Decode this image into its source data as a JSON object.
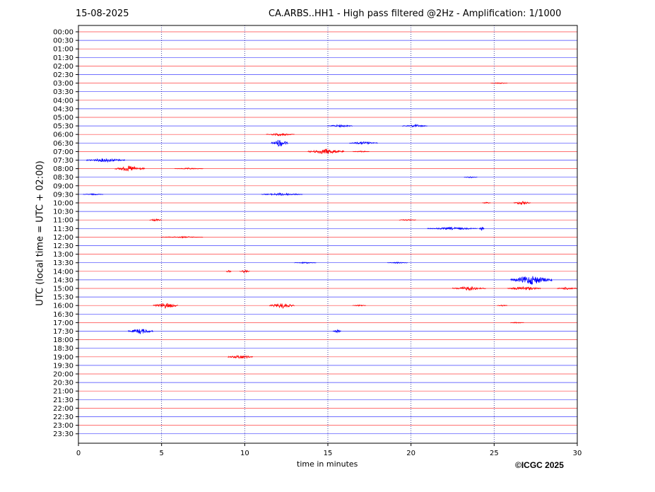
{
  "header": {
    "date": "15-08-2025",
    "station_title": "CA.ARBS..HH1 - High pass filtered @2Hz - Amplification: 1/1000"
  },
  "footer": {
    "copyright": "©ICGC 2025"
  },
  "chart_data": {
    "type": "line",
    "title": "CA.ARBS..HH1 - High pass filtered @2Hz - Amplification: 1/1000",
    "xlabel": "time in minutes",
    "ylabel": "UTC (local time = UTC + 02:00)",
    "xlim": [
      0,
      30
    ],
    "xticks": [
      0,
      5,
      10,
      15,
      20,
      25,
      30
    ],
    "vertical_gridlines": [
      5,
      10,
      15,
      20,
      25
    ],
    "grid": "dotted vertical lines at 5-minute intervals",
    "trace_colors": [
      "#ff0000",
      "#0000ff"
    ],
    "rows": [
      "00:00",
      "00:30",
      "01:00",
      "01:30",
      "02:00",
      "02:30",
      "03:00",
      "03:30",
      "04:00",
      "04:30",
      "05:00",
      "05:30",
      "06:00",
      "06:30",
      "07:00",
      "07:30",
      "08:00",
      "08:30",
      "09:00",
      "09:30",
      "10:00",
      "10:30",
      "11:00",
      "11:30",
      "12:00",
      "12:30",
      "13:00",
      "13:30",
      "14:00",
      "14:30",
      "15:00",
      "15:30",
      "16:00",
      "16:30",
      "17:00",
      "17:30",
      "18:00",
      "18:30",
      "19:00",
      "19:30",
      "20:00",
      "20:30",
      "21:00",
      "21:30",
      "22:00",
      "22:30",
      "23:00",
      "23:30"
    ],
    "events": [
      {
        "row": "03:00",
        "start": 24.8,
        "end": 25.8,
        "amp": 1
      },
      {
        "row": "05:30",
        "start": 15.0,
        "end": 16.5,
        "amp": 2
      },
      {
        "row": "05:30",
        "start": 19.5,
        "end": 21.0,
        "amp": 2
      },
      {
        "row": "06:00",
        "start": 11.3,
        "end": 13.0,
        "amp": 2
      },
      {
        "row": "06:30",
        "start": 11.6,
        "end": 12.6,
        "amp": 6
      },
      {
        "row": "06:30",
        "start": 16.3,
        "end": 18.0,
        "amp": 2
      },
      {
        "row": "07:00",
        "start": 13.8,
        "end": 16.0,
        "amp": 4
      },
      {
        "row": "07:00",
        "start": 16.5,
        "end": 17.5,
        "amp": 1
      },
      {
        "row": "07:30",
        "start": 0.5,
        "end": 2.8,
        "amp": 3
      },
      {
        "row": "08:00",
        "start": 2.2,
        "end": 4.0,
        "amp": 4
      },
      {
        "row": "08:00",
        "start": 5.8,
        "end": 7.5,
        "amp": 1
      },
      {
        "row": "08:30",
        "start": 23.2,
        "end": 24.0,
        "amp": 1
      },
      {
        "row": "09:30",
        "start": 0.3,
        "end": 1.5,
        "amp": 1
      },
      {
        "row": "09:30",
        "start": 11.0,
        "end": 13.5,
        "amp": 2
      },
      {
        "row": "10:00",
        "start": 24.3,
        "end": 24.8,
        "amp": 1
      },
      {
        "row": "10:00",
        "start": 26.2,
        "end": 27.2,
        "amp": 3
      },
      {
        "row": "11:00",
        "start": 4.3,
        "end": 5.0,
        "amp": 2
      },
      {
        "row": "11:00",
        "start": 19.3,
        "end": 20.3,
        "amp": 1
      },
      {
        "row": "11:30",
        "start": 21.0,
        "end": 24.0,
        "amp": 2
      },
      {
        "row": "11:30",
        "start": 24.1,
        "end": 24.4,
        "amp": 3
      },
      {
        "row": "12:00",
        "start": 5.0,
        "end": 7.5,
        "amp": 1
      },
      {
        "row": "13:30",
        "start": 13.0,
        "end": 14.3,
        "amp": 1
      },
      {
        "row": "13:30",
        "start": 18.6,
        "end": 19.8,
        "amp": 1
      },
      {
        "row": "14:00",
        "start": 8.9,
        "end": 9.2,
        "amp": 2
      },
      {
        "row": "14:00",
        "start": 9.7,
        "end": 10.3,
        "amp": 2
      },
      {
        "row": "14:30",
        "start": 26.0,
        "end": 28.5,
        "amp": 7
      },
      {
        "row": "15:00",
        "start": 22.5,
        "end": 24.5,
        "amp": 3
      },
      {
        "row": "15:00",
        "start": 25.8,
        "end": 27.8,
        "amp": 3
      },
      {
        "row": "15:00",
        "start": 28.8,
        "end": 30.0,
        "amp": 2
      },
      {
        "row": "16:00",
        "start": 4.5,
        "end": 6.0,
        "amp": 4
      },
      {
        "row": "16:00",
        "start": 11.5,
        "end": 13.0,
        "amp": 4
      },
      {
        "row": "16:00",
        "start": 16.5,
        "end": 17.3,
        "amp": 1
      },
      {
        "row": "16:00",
        "start": 25.2,
        "end": 25.8,
        "amp": 1
      },
      {
        "row": "17:00",
        "start": 26.0,
        "end": 26.8,
        "amp": 1
      },
      {
        "row": "17:30",
        "start": 3.0,
        "end": 4.5,
        "amp": 4
      },
      {
        "row": "17:30",
        "start": 15.3,
        "end": 15.8,
        "amp": 2
      },
      {
        "row": "19:00",
        "start": 9.0,
        "end": 10.5,
        "amp": 3
      }
    ]
  }
}
